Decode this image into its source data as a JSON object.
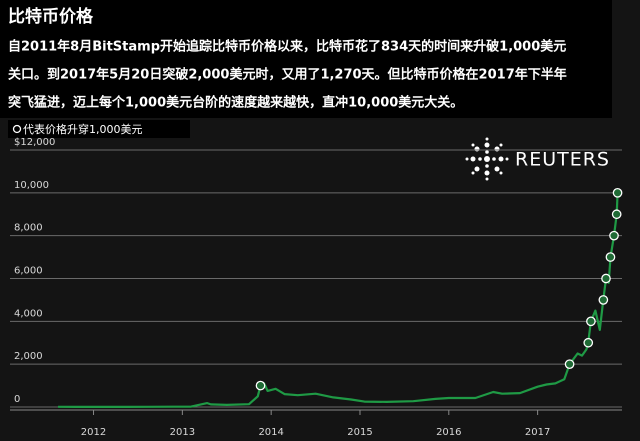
{
  "chart_data": {
    "type": "line",
    "title": "比特币价格",
    "subtitle": [
      "自2011年8月BitStamp开始追踪比特币价格以来，比特币花了834天的时间来升破1,000美元",
      "关口。到2017年5月20日突破2,000美元时，又用了1,270天。但比特币价格在2017年下半年",
      "突飞猛进，迈上每个1,000美元台阶的速度越来越快，直冲10,000美元大关。"
    ],
    "logo": "REUTERS",
    "xlim": [
      2011.6,
      2017.95
    ],
    "xticks": [
      2012,
      2013,
      2014,
      2015,
      2016,
      2017
    ],
    "ylim": [
      0,
      12000
    ],
    "yticks": [
      0,
      {
        "value": 2000,
        "label": "2,000"
      },
      {
        "value": 4000,
        "label": "4,000"
      },
      {
        "value": 6000,
        "label": "6,000"
      },
      {
        "value": 8000,
        "label": "8,000"
      },
      {
        "value": 10000,
        "label": "10,000"
      },
      {
        "value": 12000,
        "label": "$12,000"
      }
    ],
    "grid": true,
    "series": [
      {
        "color": "#1f9a45",
        "x": [
          2011.6,
          2011.8,
          2012.0,
          2012.3,
          2012.6,
          2012.9,
          2013.1,
          2013.28,
          2013.32,
          2013.5,
          2013.75,
          2013.85,
          2013.88,
          2013.92,
          2013.96,
          2014.05,
          2014.15,
          2014.3,
          2014.5,
          2014.7,
          2014.9,
          2015.05,
          2015.3,
          2015.6,
          2015.85,
          2016.0,
          2016.3,
          2016.5,
          2016.6,
          2016.8,
          2017.0,
          2017.1,
          2017.2,
          2017.3,
          2017.36,
          2017.45,
          2017.5,
          2017.55,
          2017.57,
          2017.6,
          2017.65,
          2017.7,
          2017.74,
          2017.77,
          2017.8,
          2017.82,
          2017.86,
          2017.89,
          2017.9,
          2017.93
        ],
        "values": [
          10,
          5,
          5,
          6,
          10,
          13,
          20,
          180,
          120,
          100,
          130,
          500,
          1000,
          1100,
          750,
          850,
          600,
          550,
          620,
          450,
          350,
          250,
          240,
          270,
          380,
          420,
          420,
          700,
          620,
          650,
          950,
          1050,
          1100,
          1300,
          2000,
          2500,
          2400,
          2700,
          3000,
          4000,
          4500,
          3600,
          5000,
          6000,
          5800,
          7000,
          8000,
          9000,
          10000,
          9800
        ]
      },
      {
        "name": "代表价格升穿1,000美元",
        "color": "#ffffff",
        "x": [
          2013.88,
          2017.36,
          2017.57,
          2017.6,
          2017.74,
          2017.77,
          2017.82,
          2017.86,
          2017.89,
          2017.9
        ],
        "values": [
          1000,
          2000,
          3000,
          4000,
          5000,
          6000,
          7000,
          8000,
          9000,
          10000
        ]
      }
    ]
  }
}
